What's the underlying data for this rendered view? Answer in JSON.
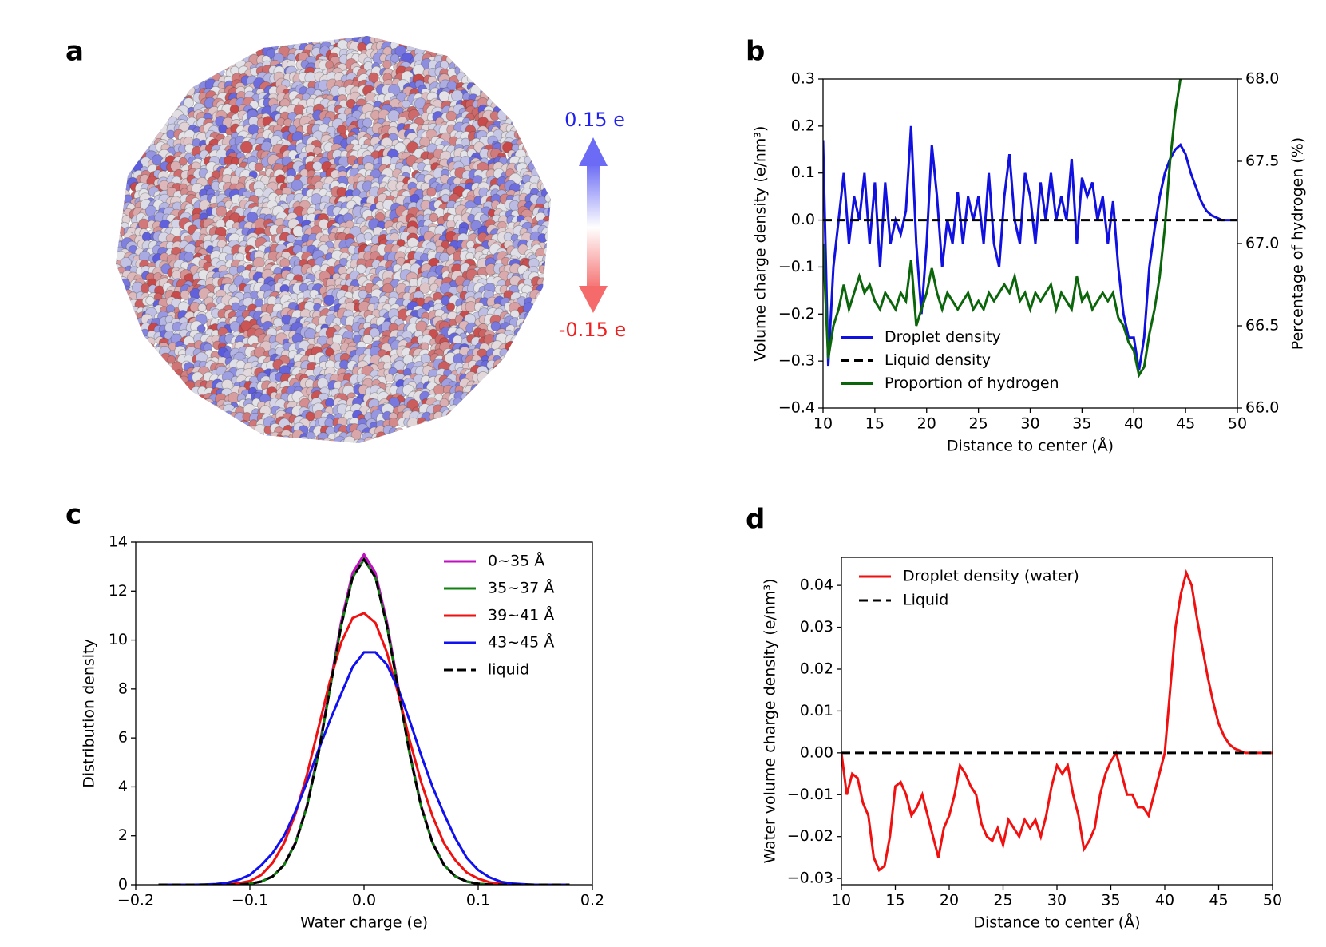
{
  "panel_labels": [
    "a",
    "b",
    "c",
    "d"
  ],
  "colorbar": {
    "max_label": "0.15 e",
    "min_label": "-0.15 e"
  },
  "chart_data": [
    {
      "type": "line",
      "xlabel": "Distance to center (Å)",
      "ylabel": "Volume charge density (e/nm³)",
      "y2label": "Percentage of hydrogen (%)",
      "x": [
        10,
        10.5,
        11,
        11.5,
        12,
        12.5,
        13,
        13.5,
        14,
        14.5,
        15,
        15.5,
        16,
        16.5,
        17,
        17.5,
        18,
        18.5,
        19,
        19.5,
        20,
        20.5,
        21,
        21.5,
        22,
        22.5,
        23,
        23.5,
        24,
        24.5,
        25,
        25.5,
        26,
        26.5,
        27,
        27.5,
        28,
        28.5,
        29,
        29.5,
        30,
        30.5,
        31,
        31.5,
        32,
        32.5,
        33,
        33.5,
        34,
        34.5,
        35,
        35.5,
        36,
        36.5,
        37,
        37.5,
        38,
        38.5,
        39,
        39.5,
        40,
        40.5,
        41,
        41.5,
        42,
        42.5,
        43,
        43.5,
        44,
        44.5,
        45,
        45.5,
        46,
        46.5,
        47,
        47.5,
        48,
        48.5,
        49,
        49.5,
        50
      ],
      "series": [
        {
          "name": "Droplet density",
          "color": "#1010e0",
          "linestyle": "solid",
          "values": [
            0.17,
            -0.31,
            -0.1,
            0.0,
            0.1,
            -0.05,
            0.05,
            0.0,
            0.1,
            -0.05,
            0.08,
            -0.1,
            0.08,
            -0.05,
            0.0,
            -0.03,
            0.02,
            0.2,
            -0.05,
            -0.2,
            -0.05,
            0.16,
            0.05,
            -0.1,
            0.0,
            -0.05,
            0.06,
            -0.05,
            0.05,
            0.0,
            0.05,
            -0.05,
            0.1,
            -0.05,
            -0.1,
            0.05,
            0.14,
            0.0,
            -0.05,
            0.1,
            0.05,
            -0.05,
            0.08,
            0.0,
            0.1,
            0.0,
            0.05,
            0.0,
            0.13,
            -0.05,
            0.09,
            0.05,
            0.08,
            0.0,
            0.05,
            -0.05,
            0.04,
            -0.1,
            -0.2,
            -0.25,
            -0.25,
            -0.32,
            -0.25,
            -0.1,
            -0.02,
            0.05,
            0.1,
            0.13,
            0.15,
            0.16,
            0.14,
            0.1,
            0.07,
            0.04,
            0.02,
            0.01,
            0.005,
            0.0,
            0.0,
            0.0,
            0.0
          ]
        },
        {
          "name": "Liquid density",
          "color": "#000000",
          "linestyle": "dashed",
          "values": [
            0,
            0,
            0,
            0,
            0,
            0,
            0,
            0,
            0,
            0,
            0,
            0,
            0,
            0,
            0,
            0,
            0,
            0,
            0,
            0,
            0,
            0,
            0,
            0,
            0,
            0,
            0,
            0,
            0,
            0,
            0,
            0,
            0,
            0,
            0,
            0,
            0,
            0,
            0,
            0,
            0,
            0,
            0,
            0,
            0,
            0,
            0,
            0,
            0,
            0,
            0,
            0,
            0,
            0,
            0,
            0,
            0,
            0,
            0,
            0,
            0,
            0,
            0,
            0,
            0,
            0,
            0,
            0,
            0,
            0,
            0,
            0,
            0,
            0,
            0,
            0,
            0,
            0,
            0,
            0,
            0
          ]
        },
        {
          "name": "Proportion of hydrogen",
          "color": "#0b650b",
          "linestyle": "solid",
          "axis": "y2",
          "values": [
            67.0,
            66.3,
            66.5,
            66.6,
            66.75,
            66.6,
            66.7,
            66.8,
            66.7,
            66.75,
            66.65,
            66.6,
            66.7,
            66.65,
            66.6,
            66.7,
            66.65,
            66.9,
            66.5,
            66.6,
            66.7,
            66.85,
            66.7,
            66.6,
            66.7,
            66.65,
            66.6,
            66.65,
            66.7,
            66.6,
            66.65,
            66.6,
            66.7,
            66.65,
            66.7,
            66.75,
            66.7,
            66.8,
            66.65,
            66.7,
            66.6,
            66.7,
            66.65,
            66.7,
            66.75,
            66.6,
            66.7,
            66.65,
            66.6,
            66.8,
            66.65,
            66.7,
            66.6,
            66.65,
            66.7,
            66.65,
            66.7,
            66.55,
            66.5,
            66.4,
            66.35,
            66.2,
            66.25,
            66.45,
            66.6,
            66.8,
            67.1,
            67.5,
            67.8,
            68.0,
            null,
            null,
            null,
            null,
            null,
            null,
            null,
            null,
            null,
            null,
            null
          ]
        }
      ],
      "xlim": [
        10,
        50
      ],
      "xticks": [
        10,
        15,
        20,
        25,
        30,
        35,
        40,
        45,
        50
      ],
      "ylim": [
        -0.4,
        0.3
      ],
      "yticks": [
        {
          "value": -0.4,
          "label": "−0.4"
        },
        {
          "value": -0.3,
          "label": "−0.3"
        },
        {
          "value": -0.2,
          "label": "−0.2"
        },
        {
          "value": -0.1,
          "label": "−0.1"
        },
        {
          "value": 0,
          "label": "0.0"
        },
        0.1,
        0.2,
        0.3
      ],
      "y2lim": [
        66,
        68
      ],
      "y2ticks": [
        {
          "value": 66,
          "label": "66.0"
        },
        66.5,
        {
          "value": 67,
          "label": "67.0"
        },
        67.5,
        {
          "value": 68,
          "label": "68.0"
        }
      ],
      "legend": "lower left"
    },
    {
      "type": "line",
      "xlabel": "Water charge (e)",
      "ylabel": "Distribution density",
      "x": [
        -0.18,
        -0.17,
        -0.16,
        -0.15,
        -0.14,
        -0.13,
        -0.12,
        -0.11,
        -0.1,
        -0.09,
        -0.08,
        -0.07,
        -0.06,
        -0.05,
        -0.04,
        -0.03,
        -0.02,
        -0.01,
        0,
        0.01,
        0.02,
        0.03,
        0.04,
        0.05,
        0.06,
        0.07,
        0.08,
        0.09,
        0.1,
        0.11,
        0.12,
        0.13,
        0.14,
        0.15,
        0.16,
        0.17,
        0.18
      ],
      "series": [
        {
          "name": "0~35 Å",
          "color": "#c010c0",
          "linestyle": "solid",
          "values": [
            0,
            0,
            0,
            0,
            0,
            0,
            0,
            0.01,
            0.045,
            0.13,
            0.35,
            0.82,
            1.73,
            3.24,
            5.42,
            8.08,
            10.75,
            12.75,
            13.5,
            12.75,
            10.75,
            8.08,
            5.42,
            3.24,
            1.73,
            0.82,
            0.35,
            0.13,
            0.045,
            0.01,
            0,
            0,
            0,
            0,
            0,
            0,
            0
          ]
        },
        {
          "name": "35~37 Å",
          "color": "#108010",
          "linestyle": "solid",
          "values": [
            0,
            0,
            0,
            0,
            0,
            0,
            0,
            0.01,
            0.04,
            0.13,
            0.34,
            0.81,
            1.7,
            3.19,
            5.34,
            7.96,
            10.59,
            12.56,
            13.3,
            12.56,
            10.59,
            7.96,
            5.34,
            3.19,
            1.7,
            0.81,
            0.34,
            0.13,
            0.04,
            0.01,
            0,
            0,
            0,
            0,
            0,
            0,
            0
          ]
        },
        {
          "name": "39~41 Å",
          "color": "#f01010",
          "linestyle": "solid",
          "values": [
            0,
            0,
            0,
            0,
            0,
            0,
            0.02,
            0.06,
            0.15,
            0.4,
            0.9,
            1.7,
            2.9,
            4.5,
            6.4,
            8.3,
            9.9,
            10.9,
            11.1,
            10.7,
            9.5,
            7.8,
            5.9,
            4.2,
            2.8,
            1.7,
            1.0,
            0.5,
            0.25,
            0.1,
            0.04,
            0.01,
            0,
            0,
            0,
            0,
            0
          ]
        },
        {
          "name": "43~45 Å",
          "color": "#1010f0",
          "linestyle": "solid",
          "values": [
            0,
            0,
            0,
            0,
            0.01,
            0.03,
            0.08,
            0.2,
            0.4,
            0.8,
            1.3,
            2.0,
            3.0,
            4.2,
            5.5,
            6.7,
            7.8,
            8.9,
            9.5,
            9.5,
            9.0,
            8.0,
            6.7,
            5.3,
            4.0,
            2.9,
            1.9,
            1.1,
            0.6,
            0.3,
            0.12,
            0.05,
            0.02,
            0,
            0,
            0,
            0
          ]
        },
        {
          "name": "liquid",
          "color": "#000000",
          "linestyle": "dashed",
          "values": [
            0,
            0,
            0,
            0,
            0,
            0,
            0,
            0.01,
            0.04,
            0.13,
            0.34,
            0.81,
            1.7,
            3.19,
            5.34,
            7.96,
            10.59,
            12.56,
            13.3,
            12.56,
            10.59,
            7.96,
            5.34,
            3.19,
            1.7,
            0.81,
            0.34,
            0.13,
            0.04,
            0.01,
            0,
            0,
            0,
            0,
            0,
            0,
            0
          ]
        }
      ],
      "xlim": [
        -0.2,
        0.2
      ],
      "xticks": [
        {
          "value": -0.2,
          "label": "−0.2"
        },
        {
          "value": -0.1,
          "label": "−0.1"
        },
        {
          "value": 0,
          "label": "0.0"
        },
        0.1,
        0.2
      ],
      "ylim": [
        0,
        14
      ],
      "yticks": [
        0,
        2,
        4,
        6,
        8,
        10,
        12,
        14
      ],
      "legend": "upper right"
    },
    {
      "type": "line",
      "xlabel": "Distance to center (Å)",
      "ylabel": "Water volume charge density (e/nm³)",
      "x": [
        10,
        10.5,
        11,
        11.5,
        12,
        12.5,
        13,
        13.5,
        14,
        14.5,
        15,
        15.5,
        16,
        16.5,
        17,
        17.5,
        18,
        18.5,
        19,
        19.5,
        20,
        20.5,
        21,
        21.5,
        22,
        22.5,
        23,
        23.5,
        24,
        24.5,
        25,
        25.5,
        26,
        26.5,
        27,
        27.5,
        28,
        28.5,
        29,
        29.5,
        30,
        30.5,
        31,
        31.5,
        32,
        32.5,
        33,
        33.5,
        34,
        34.5,
        35,
        35.5,
        36,
        36.5,
        37,
        37.5,
        38,
        38.5,
        39,
        39.5,
        40,
        40.5,
        41,
        41.5,
        42,
        42.5,
        43,
        43.5,
        44,
        44.5,
        45,
        45.5,
        46,
        46.5,
        47,
        47.5,
        48,
        48.5,
        49,
        49.5,
        50
      ],
      "series": [
        {
          "name": "Droplet density (water)",
          "color": "#f01010",
          "linestyle": "solid",
          "values": [
            0.0,
            -0.01,
            -0.005,
            -0.006,
            -0.012,
            -0.015,
            -0.025,
            -0.028,
            -0.027,
            -0.02,
            -0.008,
            -0.007,
            -0.01,
            -0.015,
            -0.013,
            -0.01,
            -0.015,
            -0.02,
            -0.025,
            -0.018,
            -0.015,
            -0.01,
            -0.003,
            -0.005,
            -0.008,
            -0.01,
            -0.017,
            -0.02,
            -0.021,
            -0.018,
            -0.022,
            -0.016,
            -0.018,
            -0.02,
            -0.016,
            -0.018,
            -0.016,
            -0.02,
            -0.015,
            -0.008,
            -0.003,
            -0.005,
            -0.003,
            -0.01,
            -0.015,
            -0.023,
            -0.021,
            -0.018,
            -0.01,
            -0.005,
            -0.002,
            0.0,
            -0.005,
            -0.01,
            -0.01,
            -0.013,
            -0.013,
            -0.015,
            -0.01,
            -0.005,
            0.0,
            0.015,
            0.03,
            0.038,
            0.043,
            0.04,
            0.032,
            0.025,
            0.018,
            0.012,
            0.007,
            0.004,
            0.002,
            0.001,
            0.0005,
            0.0,
            0.0,
            0.0,
            0.0,
            0.0,
            0.0
          ]
        },
        {
          "name": "Liquid",
          "color": "#000000",
          "linestyle": "dashed",
          "values": [
            0,
            0,
            0,
            0,
            0,
            0,
            0,
            0,
            0,
            0,
            0,
            0,
            0,
            0,
            0,
            0,
            0,
            0,
            0,
            0,
            0,
            0,
            0,
            0,
            0,
            0,
            0,
            0,
            0,
            0,
            0,
            0,
            0,
            0,
            0,
            0,
            0,
            0,
            0,
            0,
            0,
            0,
            0,
            0,
            0,
            0,
            0,
            0,
            0,
            0,
            0,
            0,
            0,
            0,
            0,
            0,
            0,
            0,
            0,
            0,
            0,
            0,
            0,
            0,
            0,
            0,
            0,
            0,
            0,
            0,
            0,
            0,
            0,
            0,
            0,
            0,
            0,
            0,
            0,
            0,
            0
          ]
        }
      ],
      "xlim": [
        10,
        50
      ],
      "xticks": [
        10,
        15,
        20,
        25,
        30,
        35,
        40,
        45,
        50
      ],
      "ylim": [
        -0.0315,
        0.0467
      ],
      "yticks": [
        {
          "value": -0.03,
          "label": "−0.03"
        },
        {
          "value": -0.02,
          "label": "−0.02"
        },
        {
          "value": -0.01,
          "label": "−0.01"
        },
        {
          "value": 0,
          "label": "0.00"
        },
        0.01,
        0.02,
        0.03,
        0.04
      ],
      "legend": "upper left"
    }
  ]
}
